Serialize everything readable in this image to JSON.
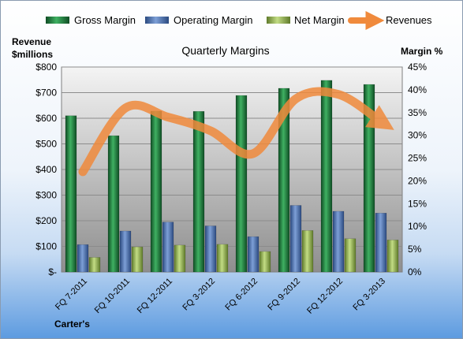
{
  "chart_data": {
    "type": "bar",
    "title": "Quarterly Margins",
    "source_label": "Carter's",
    "left_axis": {
      "label_line1": "Revenue",
      "label_line2": "$millions",
      "range": [
        0,
        800
      ],
      "ticks": [
        "$-",
        "$100",
        "$200",
        "$300",
        "$400",
        "$500",
        "$600",
        "$700",
        "$800"
      ]
    },
    "right_axis": {
      "label": "Margin %",
      "range": [
        0,
        45
      ],
      "ticks": [
        "0%",
        "5%",
        "10%",
        "15%",
        "20%",
        "25%",
        "30%",
        "35%",
        "40%",
        "45%"
      ]
    },
    "categories": [
      "FQ 7-2011",
      "FQ 10-2011",
      "FQ 12-2011",
      "FQ 3-2012",
      "FQ 6-2012",
      "FQ 9-2012",
      "FQ 12-2012",
      "FQ 3-2013"
    ],
    "series": [
      {
        "name": "Gross Margin",
        "kind": "bar",
        "axis": "left",
        "color": "#1e7a3a",
        "values": [
          610,
          532,
          628,
          627,
          689,
          717,
          748,
          732
        ]
      },
      {
        "name": "Operating Margin",
        "kind": "bar",
        "axis": "left",
        "color": "#4f73b3",
        "values": [
          107,
          160,
          195,
          180,
          138,
          260,
          237,
          230
        ]
      },
      {
        "name": "Net Margin",
        "kind": "bar",
        "axis": "left",
        "color": "#9bbb59",
        "values": [
          57,
          98,
          105,
          108,
          80,
          162,
          130,
          125
        ]
      },
      {
        "name": "Revenues",
        "kind": "line",
        "axis": "right",
        "color": "#f08a3c",
        "values": [
          22,
          36,
          34,
          31,
          26,
          38,
          39,
          33
        ]
      }
    ],
    "legend": {
      "position": "top"
    },
    "grid": true
  }
}
